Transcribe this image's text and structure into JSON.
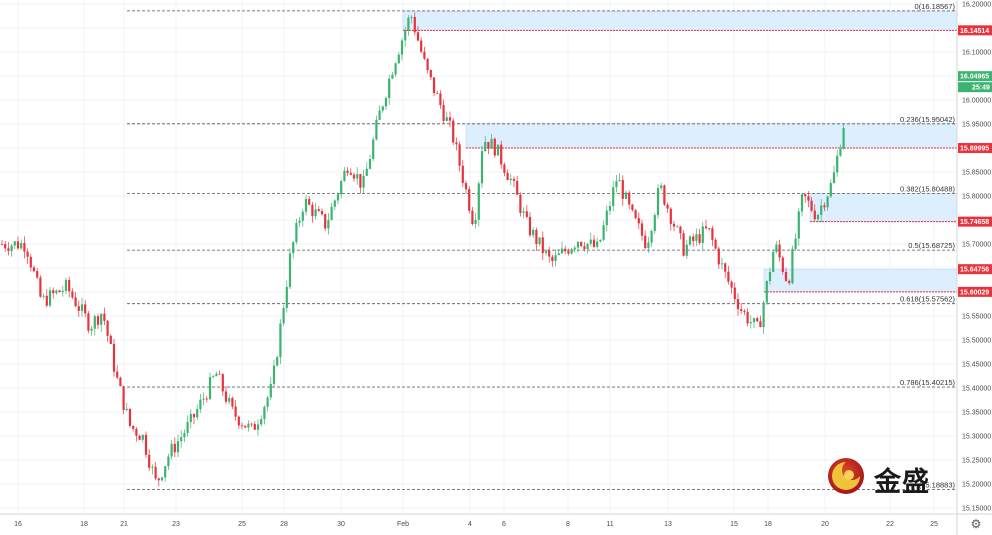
{
  "chart_data": {
    "type": "candlestick",
    "title": "",
    "xlabel": "",
    "ylabel": "",
    "ylim": [
      15.125,
      16.205
    ],
    "grid": true,
    "x_ticks": [
      "16",
      "18",
      "21",
      "23",
      "25",
      "28",
      "30",
      "Feb",
      "4",
      "6",
      "8",
      "11",
      "13",
      "15",
      "18",
      "20",
      "22",
      "25"
    ],
    "y_ticks": [
      "16.20000",
      "16.15000",
      "16.10000",
      "16.05000",
      "16.00000",
      "15.95000",
      "15.90000",
      "15.85000",
      "15.80000",
      "15.75000",
      "15.70000",
      "15.65000",
      "15.60000",
      "15.55000",
      "15.50000",
      "15.45000",
      "15.40000",
      "15.35000",
      "15.30000",
      "15.25000",
      "15.20000",
      "15.15000"
    ],
    "path_points": [
      {
        "x": "16",
        "y": 15.7
      },
      {
        "x": "16",
        "y": 15.58
      },
      {
        "x": "17",
        "y": 15.61
      },
      {
        "x": "18",
        "y": 15.53
      },
      {
        "x": "18",
        "y": 15.56
      },
      {
        "x": "19",
        "y": 15.42
      },
      {
        "x": "21",
        "y": 15.32
      },
      {
        "x": "21",
        "y": 15.3
      },
      {
        "x": "22",
        "y": 15.2
      },
      {
        "x": "22",
        "y": 15.26
      },
      {
        "x": "23",
        "y": 15.33
      },
      {
        "x": "24",
        "y": 15.43
      },
      {
        "x": "24",
        "y": 15.35
      },
      {
        "x": "25",
        "y": 15.31
      },
      {
        "x": "25",
        "y": 15.4
      },
      {
        "x": "28",
        "y": 15.68
      },
      {
        "x": "28",
        "y": 15.79
      },
      {
        "x": "29",
        "y": 15.74
      },
      {
        "x": "30",
        "y": 15.87
      },
      {
        "x": "30",
        "y": 15.82
      },
      {
        "x": "31",
        "y": 15.97
      },
      {
        "x": "31",
        "y": 16.08
      },
      {
        "x": "Feb",
        "y": 16.18
      },
      {
        "x": "Feb",
        "y": 16.06
      },
      {
        "x": "2",
        "y": 15.93
      },
      {
        "x": "4",
        "y": 15.74
      },
      {
        "x": "4",
        "y": 15.92
      },
      {
        "x": "5",
        "y": 15.9
      },
      {
        "x": "6",
        "y": 15.83
      },
      {
        "x": "6",
        "y": 15.74
      },
      {
        "x": "7",
        "y": 15.66
      },
      {
        "x": "8",
        "y": 15.71
      },
      {
        "x": "8",
        "y": 15.69
      },
      {
        "x": "11",
        "y": 15.84
      },
      {
        "x": "11",
        "y": 15.76
      },
      {
        "x": "12",
        "y": 15.7
      },
      {
        "x": "12",
        "y": 15.82
      },
      {
        "x": "13",
        "y": 15.69
      },
      {
        "x": "14",
        "y": 15.73
      },
      {
        "x": "14",
        "y": 15.64
      },
      {
        "x": "15",
        "y": 15.56
      },
      {
        "x": "15",
        "y": 15.52
      },
      {
        "x": "18",
        "y": 15.7
      },
      {
        "x": "18",
        "y": 15.62
      },
      {
        "x": "19",
        "y": 15.8
      },
      {
        "x": "19",
        "y": 15.76
      },
      {
        "x": "20",
        "y": 15.83
      },
      {
        "x": "20",
        "y": 16.0
      },
      {
        "x": "20",
        "y": 16.08
      },
      {
        "x": "20",
        "y": 16.05
      }
    ],
    "fib_levels": [
      {
        "label": "0(16.18567)",
        "value": 16.18567
      },
      {
        "label": "0.236(15.95042)",
        "value": 15.95042
      },
      {
        "label": "0.382(15.80488)",
        "value": 15.80488
      },
      {
        "label": "0.5(15.68725)",
        "value": 15.68725
      },
      {
        "label": "0.618(15.57562)",
        "value": 15.57562
      },
      {
        "label": "0.786(15.40215)",
        "value": 15.40215
      },
      {
        "label": "(15.18883)",
        "value": 15.18883
      }
    ],
    "zones": [
      {
        "top": 16.185,
        "bottom": 16.1451,
        "x_from": "Feb",
        "x_to": "end"
      },
      {
        "top": 15.9504,
        "bottom": 15.89995,
        "x_from": "4",
        "x_to": "end"
      },
      {
        "top": 15.8049,
        "bottom": 15.74658,
        "x_from": "19",
        "x_to": "end"
      },
      {
        "top": 15.64756,
        "bottom": 15.60029,
        "x_from": "18",
        "x_to": "end"
      }
    ],
    "price_badges": [
      {
        "label": "16.14514",
        "value": 16.14514,
        "color": "#e8323c"
      },
      {
        "label": "16.04965",
        "value": 16.04965,
        "color": "#3cb371"
      },
      {
        "label": "15.89995",
        "value": 15.89995,
        "color": "#e8323c"
      },
      {
        "label": "15.74658",
        "value": 15.74658,
        "color": "#e8323c"
      },
      {
        "label": "15.64756",
        "value": 15.64756,
        "color": "#e8323c"
      },
      {
        "label": "15.60029",
        "value": 15.60029,
        "color": "#e8323c"
      }
    ],
    "countdown": "25:49",
    "colors": {
      "up": "#3cb371",
      "down": "#e8323c",
      "zone_fill": "#ddeeff",
      "zone_edge": "#b6d7f5",
      "fib_line": "#555555"
    }
  },
  "watermark": {
    "text": "金盛",
    "logo": "jinsheng-logo"
  },
  "controls": {
    "settings_icon": "gear-icon"
  }
}
